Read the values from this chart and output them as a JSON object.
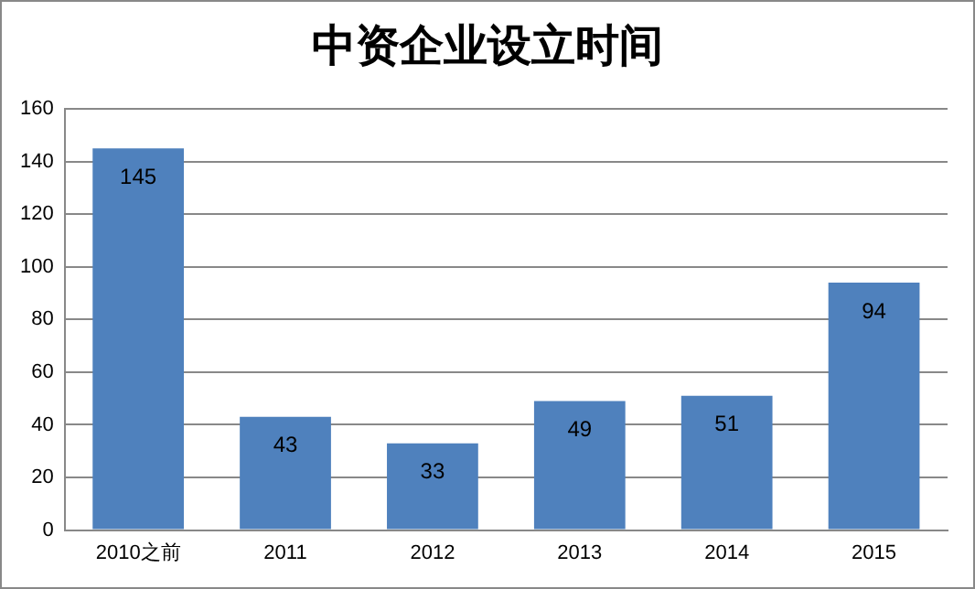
{
  "chart_data": {
    "type": "bar",
    "title": "中资企业设立时间",
    "categories": [
      "2010之前",
      "2011",
      "2012",
      "2013",
      "2014",
      "2015"
    ],
    "values": [
      145,
      43,
      33,
      49,
      51,
      94
    ],
    "color": "#4f81bd",
    "ylim": [
      0,
      160
    ],
    "yticks": [
      0,
      20,
      40,
      60,
      80,
      100,
      120,
      140,
      160
    ],
    "grid": "y",
    "data_labels": true,
    "legend": false
  }
}
